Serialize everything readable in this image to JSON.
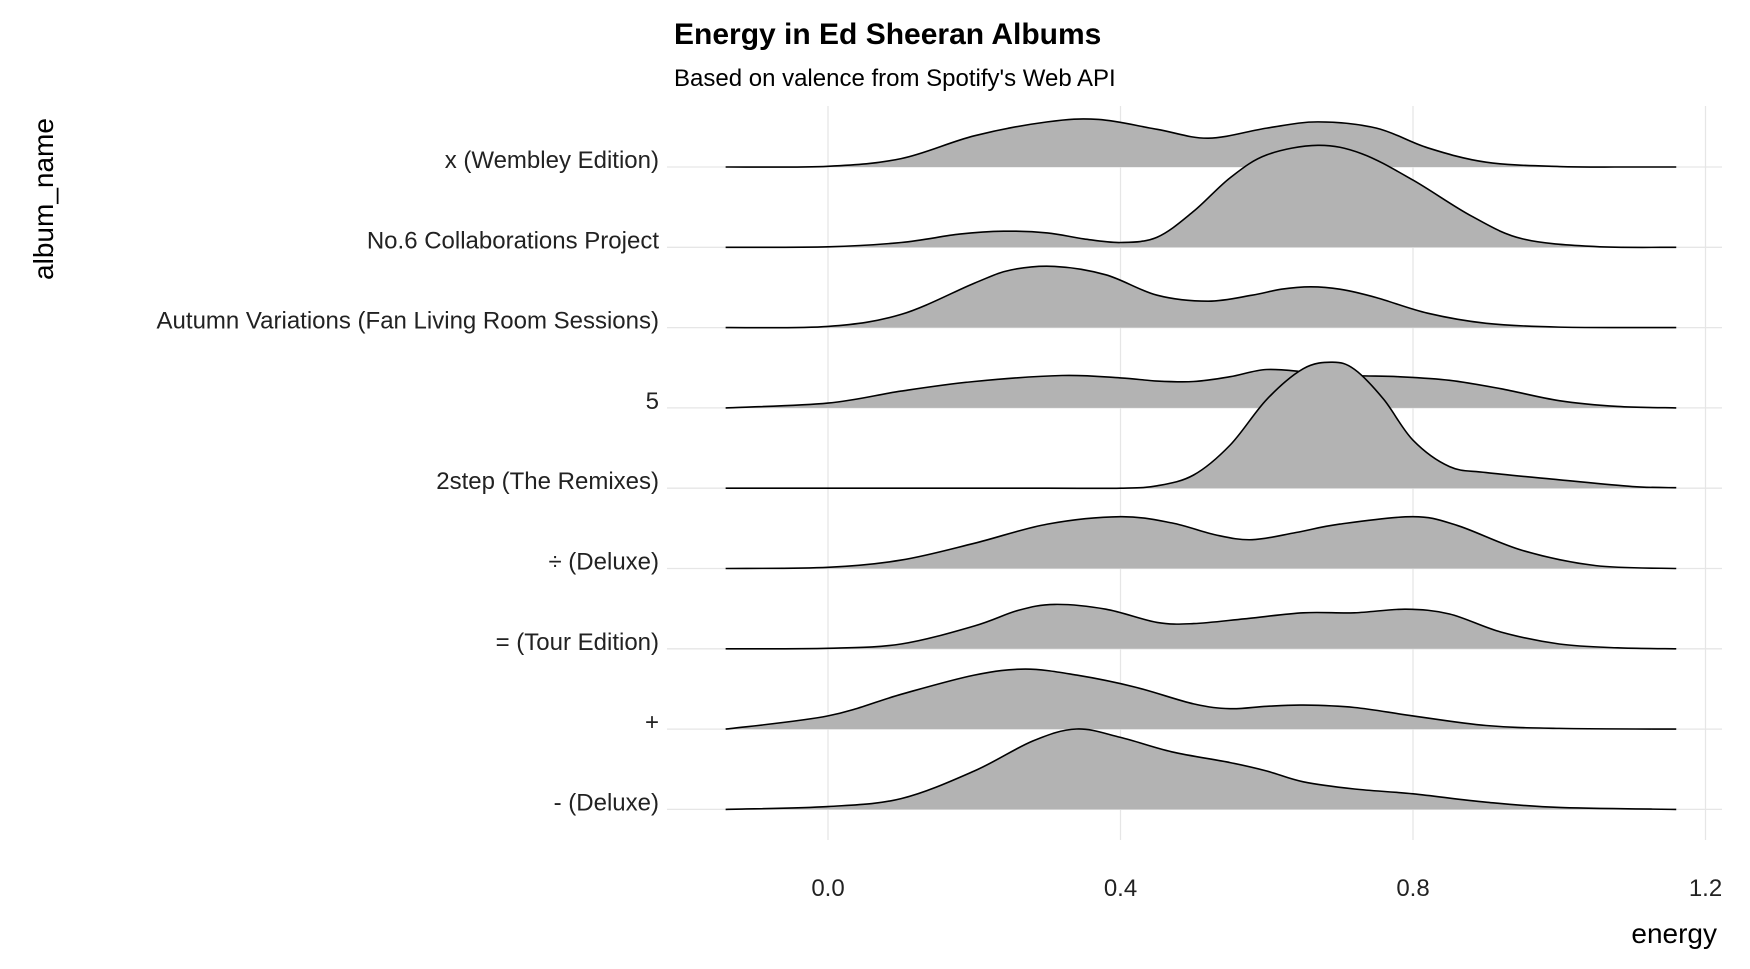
{
  "chart_data": {
    "type": "ridgeline",
    "title": "Energy in Ed Sheeran Albums",
    "subtitle": "Based on valence from Spotify's Web API",
    "xlabel": "energy",
    "ylabel": "album_name",
    "xlim": [
      -0.14,
      1.16
    ],
    "x_ticks": [
      {
        "value": 0.0,
        "label": "0.0"
      },
      {
        "value": 0.4,
        "label": "0.4"
      },
      {
        "value": 0.8,
        "label": "0.8"
      },
      {
        "value": 1.2,
        "label": "1.2"
      }
    ],
    "grid": true,
    "fill_color": "#b3b3b3",
    "line_color": "#000000",
    "categories": [
      "x (Wembley Edition)",
      "No.6 Collaborations Project",
      "Autumn Variations (Fan Living Room Sessions)",
      "5",
      "2step (The Remixes)",
      "÷ (Deluxe)",
      "= (Tour Edition)",
      "+",
      "- (Deluxe)"
    ],
    "series": [
      {
        "album": "x (Wembley Edition)",
        "x": [
          -0.14,
          0.0,
          0.1,
          0.2,
          0.3,
          0.37,
          0.45,
          0.52,
          0.6,
          0.67,
          0.75,
          0.82,
          0.9,
          1.0,
          1.1,
          1.16
        ],
        "density": [
          0.0,
          0.03,
          0.35,
          1.3,
          1.88,
          1.98,
          1.57,
          1.2,
          1.62,
          1.88,
          1.62,
          0.8,
          0.2,
          0.02,
          0.0,
          0.0
        ]
      },
      {
        "album": "No.6 Collaborations Project",
        "x": [
          -0.14,
          0.0,
          0.1,
          0.18,
          0.24,
          0.3,
          0.35,
          0.4,
          0.45,
          0.5,
          0.55,
          0.6,
          0.67,
          0.73,
          0.8,
          0.88,
          0.95,
          1.05,
          1.16
        ],
        "density": [
          0.0,
          0.02,
          0.2,
          0.55,
          0.67,
          0.6,
          0.35,
          0.2,
          0.42,
          1.5,
          2.9,
          3.85,
          4.25,
          3.9,
          2.8,
          1.3,
          0.35,
          0.03,
          0.0
        ]
      },
      {
        "album": "Autumn Variations (Fan Living Room Sessions)",
        "x": [
          -0.14,
          0.0,
          0.1,
          0.2,
          0.25,
          0.31,
          0.38,
          0.45,
          0.52,
          0.58,
          0.62,
          0.66,
          0.7,
          0.75,
          0.82,
          0.9,
          1.0,
          1.16
        ],
        "density": [
          0.0,
          0.05,
          0.55,
          1.85,
          2.4,
          2.55,
          2.2,
          1.35,
          1.1,
          1.35,
          1.6,
          1.7,
          1.6,
          1.25,
          0.6,
          0.18,
          0.02,
          0.0
        ]
      },
      {
        "album": "5",
        "x": [
          -0.14,
          0.0,
          0.1,
          0.2,
          0.32,
          0.4,
          0.45,
          0.5,
          0.55,
          0.6,
          0.66,
          0.72,
          0.78,
          0.85,
          0.92,
          1.0,
          1.08,
          1.16
        ],
        "density": [
          0.0,
          0.2,
          0.7,
          1.1,
          1.35,
          1.25,
          1.12,
          1.1,
          1.3,
          1.6,
          1.48,
          1.35,
          1.3,
          1.15,
          0.8,
          0.3,
          0.06,
          0.0
        ]
      },
      {
        "album": "2step (The Remixes)",
        "x": [
          -0.14,
          0.0,
          0.3,
          0.4,
          0.45,
          0.5,
          0.55,
          0.6,
          0.65,
          0.69,
          0.72,
          0.76,
          0.8,
          0.85,
          0.9,
          1.0,
          1.1,
          1.16
        ],
        "density": [
          0.0,
          0.0,
          0.0,
          0.0,
          0.1,
          0.55,
          1.8,
          3.7,
          4.98,
          5.25,
          4.95,
          3.7,
          2.0,
          0.9,
          0.65,
          0.35,
          0.07,
          0.02
        ]
      },
      {
        "album": "÷ (Deluxe)",
        "x": [
          -0.14,
          0.0,
          0.1,
          0.2,
          0.3,
          0.4,
          0.47,
          0.53,
          0.58,
          0.64,
          0.7,
          0.8,
          0.86,
          0.95,
          1.05,
          1.16
        ],
        "density": [
          0.0,
          0.05,
          0.35,
          1.05,
          1.85,
          2.16,
          1.9,
          1.4,
          1.2,
          1.5,
          1.85,
          2.16,
          1.8,
          0.75,
          0.12,
          0.0
        ]
      },
      {
        "album": "= (Tour Edition)",
        "x": [
          -0.14,
          0.0,
          0.1,
          0.2,
          0.26,
          0.31,
          0.38,
          0.45,
          0.5,
          0.57,
          0.65,
          0.72,
          0.79,
          0.85,
          0.92,
          1.0,
          1.08,
          1.16
        ],
        "density": [
          0.0,
          0.02,
          0.2,
          0.95,
          1.6,
          1.85,
          1.65,
          1.1,
          1.05,
          1.25,
          1.5,
          1.5,
          1.65,
          1.45,
          0.7,
          0.2,
          0.04,
          0.0
        ]
      },
      {
        "album": "+",
        "x": [
          -0.14,
          0.0,
          0.1,
          0.2,
          0.27,
          0.34,
          0.42,
          0.5,
          0.55,
          0.6,
          0.65,
          0.72,
          0.8,
          0.9,
          1.0,
          1.16
        ],
        "density": [
          0.0,
          0.55,
          1.45,
          2.25,
          2.5,
          2.25,
          1.75,
          1.05,
          0.85,
          0.95,
          1.0,
          0.9,
          0.55,
          0.15,
          0.03,
          0.0
        ]
      },
      {
        "album": "- (Deluxe)",
        "x": [
          -0.14,
          0.0,
          0.1,
          0.2,
          0.28,
          0.34,
          0.4,
          0.47,
          0.55,
          0.6,
          0.65,
          0.72,
          0.8,
          0.9,
          1.0,
          1.16
        ],
        "density": [
          0.0,
          0.12,
          0.45,
          1.6,
          2.85,
          3.35,
          3.0,
          2.4,
          1.95,
          1.6,
          1.15,
          0.85,
          0.65,
          0.3,
          0.08,
          0.0
        ]
      }
    ]
  }
}
